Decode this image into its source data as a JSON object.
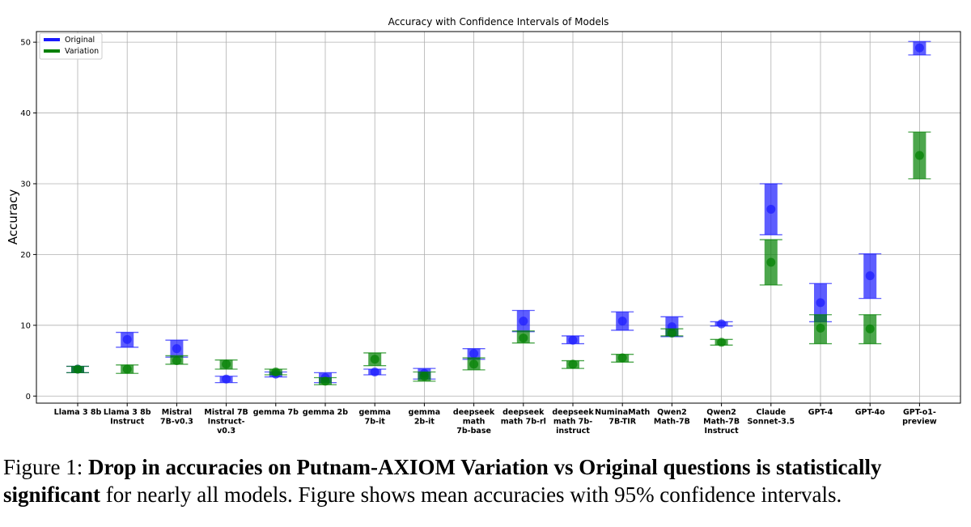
{
  "chart_data": {
    "type": "scatter",
    "title": "Accuracy with Confidence Intervals of Models",
    "xlabel": "",
    "ylabel": "Accuracy",
    "ylim": [
      -1,
      51.5
    ],
    "yticks": [
      0,
      10,
      20,
      30,
      40,
      50
    ],
    "grid": true,
    "legend_position": "top-left",
    "categories": [
      "Llama 3 8b",
      "Llama 3 8b Instruct",
      "Mistral 7B-v0.3",
      "Mistral 7B Instruct-v0.3",
      "gemma 7b",
      "gemma 2b",
      "gemma 7b-it",
      "gemma 2b-it",
      "deepseek math 7b-base",
      "deepseek math 7b-rl",
      "deepseek math 7b-instruct",
      "NuminaMath 7B-TIR",
      "Qwen2 Math-7B",
      "Qwen2 Math-7B Instruct",
      "Claude Sonnet-3.5",
      "GPT-4",
      "GPT-4o",
      "GPT-o1-preview"
    ],
    "category_lines": [
      [
        "Llama 3 8b"
      ],
      [
        "Llama 3 8b",
        "Instruct"
      ],
      [
        "Mistral",
        "7B-v0.3"
      ],
      [
        "Mistral 7B",
        "Instruct-",
        "v0.3"
      ],
      [
        "gemma 7b"
      ],
      [
        "gemma 2b"
      ],
      [
        "gemma",
        "7b-it"
      ],
      [
        "gemma",
        "2b-it"
      ],
      [
        "deepseek",
        "math",
        "7b-base"
      ],
      [
        "deepseek",
        "math 7b-rl"
      ],
      [
        "deepseek",
        "math 7b-",
        "instruct"
      ],
      [
        "NuminaMath",
        "7B-TIR"
      ],
      [
        "Qwen2",
        "Math-7B"
      ],
      [
        "Qwen2",
        "Math-7B",
        "Instruct"
      ],
      [
        "Claude",
        "Sonnet-3.5"
      ],
      [
        "GPT-4"
      ],
      [
        "GPT-4o"
      ],
      [
        "GPT-o1-",
        "preview"
      ]
    ],
    "series": [
      {
        "name": "Original",
        "color": "#1a1aff",
        "mean": [
          3.8,
          8.0,
          6.7,
          2.4,
          3.1,
          2.6,
          3.4,
          3.2,
          6.0,
          10.6,
          7.9,
          10.6,
          9.8,
          10.2,
          26.4,
          13.2,
          17.0,
          49.2
        ],
        "lower": [
          3.3,
          6.9,
          5.5,
          1.9,
          2.7,
          1.9,
          3.0,
          2.4,
          5.2,
          9.1,
          7.4,
          9.3,
          8.4,
          9.9,
          22.8,
          10.5,
          13.8,
          48.2
        ],
        "upper": [
          4.2,
          9.0,
          7.9,
          2.8,
          3.4,
          3.3,
          3.8,
          3.9,
          6.7,
          12.1,
          8.5,
          11.9,
          11.2,
          10.5,
          30.0,
          15.9,
          20.1,
          50.1
        ]
      },
      {
        "name": "Variation",
        "color": "#008000",
        "mean": [
          3.8,
          3.8,
          5.0,
          4.5,
          3.4,
          2.1,
          5.2,
          2.8,
          4.5,
          8.2,
          4.5,
          5.4,
          8.9,
          7.6,
          18.9,
          9.6,
          9.5,
          34.0
        ],
        "lower": [
          3.3,
          3.2,
          4.5,
          3.8,
          3.0,
          1.6,
          4.3,
          2.1,
          3.7,
          7.5,
          3.9,
          4.8,
          8.5,
          7.2,
          15.7,
          7.4,
          7.4,
          30.7
        ],
        "upper": [
          4.2,
          4.4,
          5.7,
          5.1,
          3.8,
          2.6,
          6.1,
          3.4,
          5.4,
          9.2,
          5.0,
          5.9,
          9.5,
          8.0,
          22.1,
          11.5,
          11.5,
          37.3
        ]
      }
    ]
  },
  "caption": {
    "prefix": "Figure 1: ",
    "bold": "Drop in accuracies on Putnam-AXIOM Variation vs Original questions is statistically significant",
    "rest": " for nearly all models. Figure shows mean accuracies with 95% confidence intervals."
  }
}
